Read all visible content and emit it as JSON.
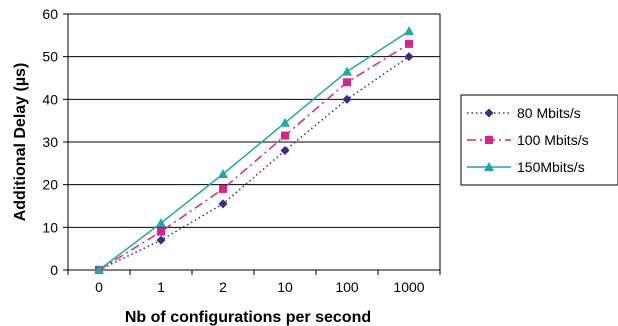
{
  "chart_data": {
    "type": "line",
    "categories": [
      "0",
      "1",
      "2",
      "10",
      "100",
      "1000"
    ],
    "xlabel": "Nb of configurations per second",
    "ylabel": "Additional Delay (µs)",
    "ylim": [
      0,
      60
    ],
    "yticks": [
      0,
      10,
      20,
      30,
      40,
      50,
      60
    ],
    "grid": "horizontal",
    "legend_position": "right",
    "series": [
      {
        "name": "80 Mbits/s",
        "values": [
          0,
          7,
          15.5,
          28,
          40,
          50
        ],
        "color": "#3b2a8a",
        "marker": "diamond",
        "dash": "dotted"
      },
      {
        "name": "100 Mbits/s",
        "values": [
          0,
          9,
          19,
          31.5,
          44,
          53
        ],
        "color": "#e0208a",
        "marker": "square",
        "dash": "dashdot"
      },
      {
        "name": "150Mbits/s",
        "values": [
          0,
          11,
          22.5,
          34.5,
          46.5,
          56
        ],
        "color": "#1aa9ad",
        "marker": "triangle",
        "dash": "solid"
      }
    ]
  }
}
